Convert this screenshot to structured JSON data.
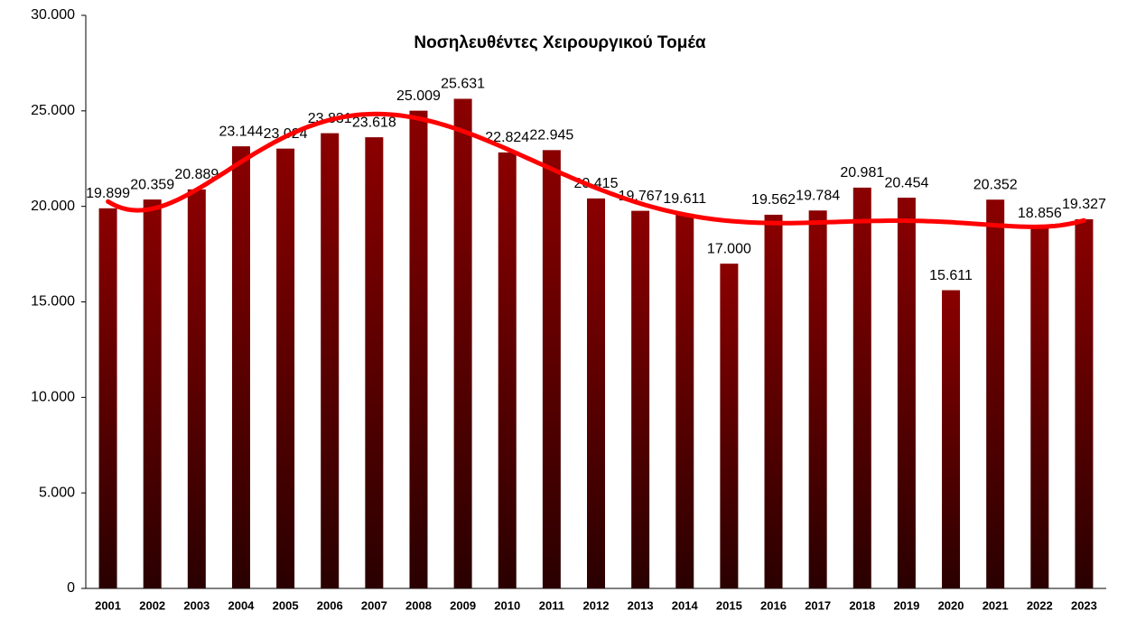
{
  "chart_data": {
    "type": "bar",
    "title": "Νοσηλευθέντες Χειρουργικού Τομέα",
    "categories": [
      "2001",
      "2002",
      "2003",
      "2004",
      "2005",
      "2006",
      "2007",
      "2008",
      "2009",
      "2010",
      "2011",
      "2012",
      "2013",
      "2014",
      "2015",
      "2016",
      "2017",
      "2018",
      "2019",
      "2020",
      "2021",
      "2022",
      "2023"
    ],
    "values": [
      19899,
      20359,
      20889,
      23144,
      23024,
      23831,
      23618,
      25009,
      25631,
      22824,
      22945,
      20415,
      19767,
      19611,
      17000,
      19562,
      19784,
      20981,
      20454,
      15611,
      20352,
      18856,
      19327
    ],
    "value_labels": [
      "19.899",
      "20.359",
      "20.889",
      "23.144",
      "23.024",
      "23.831",
      "23.618",
      "25.009",
      "25.631",
      "22.824",
      "22.945",
      "20.415",
      "19.767",
      "19.611",
      "17.000",
      "19.562",
      "19.784",
      "20.981",
      "20.454",
      "15.611",
      "20.352",
      "18.856",
      "19.327"
    ],
    "color": "#8b0000",
    "ylim": [
      0,
      30000
    ],
    "yticks": [
      0,
      {
        "value": 5000,
        "label": "5.000"
      },
      {
        "value": 10000,
        "label": "10.000"
      },
      {
        "value": 15000,
        "label": "15.000"
      },
      {
        "value": 20000,
        "label": "20.000"
      },
      {
        "value": 25000,
        "label": "25.000"
      },
      {
        "value": 30000,
        "label": "30.000"
      }
    ],
    "trendline": {
      "type": "polynomial",
      "order": 6,
      "color": "#ff0000"
    }
  }
}
